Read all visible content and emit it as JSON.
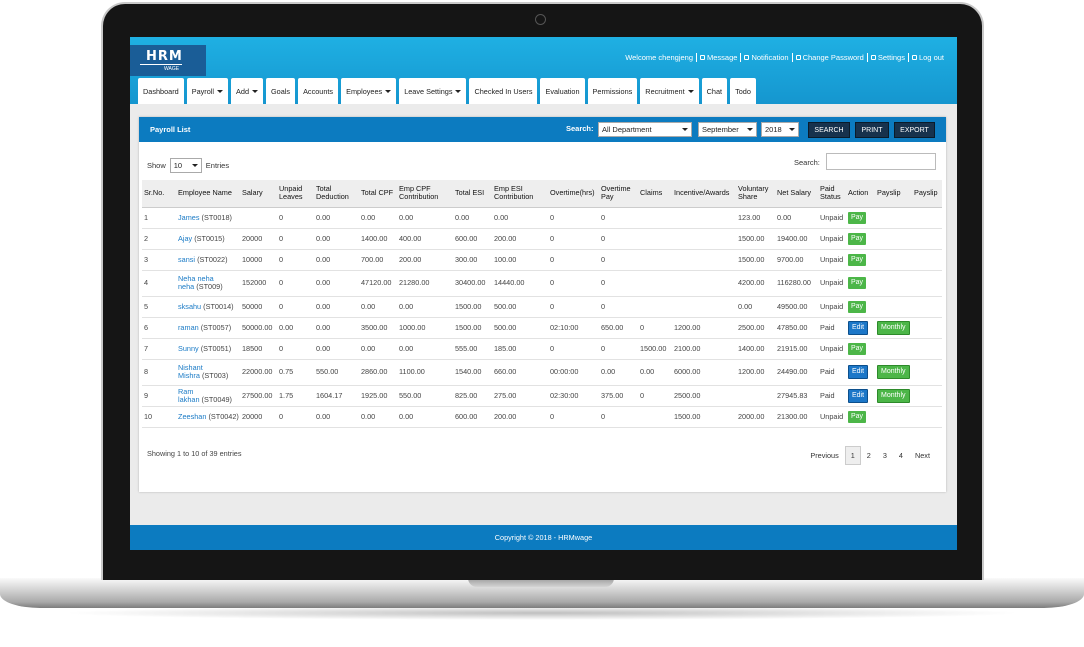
{
  "header": {
    "logo": "HRM",
    "logo_sub": "WAGE",
    "welcome": "Welcome chengjeng",
    "links": [
      "Message",
      "Notification",
      "Change Password",
      "Settings",
      "Log out"
    ]
  },
  "nav": [
    {
      "label": "Dashboard"
    },
    {
      "label": "Payroll",
      "dropdown": true
    },
    {
      "label": "Add",
      "dropdown": true
    },
    {
      "label": "Goals"
    },
    {
      "label": "Accounts"
    },
    {
      "label": "Employees",
      "dropdown": true
    },
    {
      "label": "Leave Settings",
      "dropdown": true
    },
    {
      "label": "Checked In Users"
    },
    {
      "label": "Evaluation"
    },
    {
      "label": "Permissions"
    },
    {
      "label": "Recruitment",
      "dropdown": true
    },
    {
      "label": "Chat"
    },
    {
      "label": "Todo"
    }
  ],
  "panel": {
    "title": "Payroll List",
    "search_label": "Search:",
    "department": "All Department",
    "month": "September",
    "year": "2018",
    "buttons": [
      "SEARCH",
      "PRINT",
      "EXPORT"
    ]
  },
  "table_controls": {
    "show": "Show",
    "page_size": "10",
    "entries": "Entries",
    "search": "Search:"
  },
  "table": {
    "columns": [
      "Sr.No.",
      "Employee Name",
      "Salary",
      "Unpaid Leaves",
      "Total Deduction",
      "Total CPF",
      "Emp CPF Contribution",
      "Total ESI",
      "Emp ESI Contribution",
      "Overtime(hrs)",
      "Overtime Pay",
      "Claims",
      "Incentive/Awards",
      "Voluntary Share",
      "Net Salary",
      "Paid Status",
      "Action",
      "Payslip",
      "Payslip"
    ],
    "rows": [
      {
        "no": "1",
        "name": "James",
        "id": "(ST0018)",
        "cells": [
          null,
          "0",
          "0.00",
          "0.00",
          "0.00",
          "0.00",
          "0.00",
          "0",
          "0",
          null,
          null,
          "123.00",
          "0.00",
          "Unpaid"
        ],
        "action": "Pay"
      },
      {
        "no": "2",
        "name": "Ajay",
        "id": "(ST0015)",
        "cells": [
          "20000",
          "0",
          "0.00",
          "1400.00",
          "400.00",
          "600.00",
          "200.00",
          "0",
          "0",
          null,
          null,
          "1500.00",
          "19400.00",
          "Unpaid"
        ],
        "action": "Pay"
      },
      {
        "no": "3",
        "name": "sansi",
        "id": "(ST0022)",
        "cells": [
          "10000",
          "0",
          "0.00",
          "700.00",
          "200.00",
          "300.00",
          "100.00",
          "0",
          "0",
          null,
          null,
          "1500.00",
          "9700.00",
          "Unpaid"
        ],
        "action": "Pay"
      },
      {
        "no": "4",
        "name": "Neha neha neha",
        "id": "(ST009)",
        "cells": [
          "152000",
          "0",
          "0.00",
          "47120.00",
          "21280.00",
          "30400.00",
          "14440.00",
          "0",
          "0",
          null,
          null,
          "4200.00",
          "116280.00",
          "Unpaid"
        ],
        "action": "Pay"
      },
      {
        "no": "5",
        "name": "sksahu",
        "id": "(ST0014)",
        "cells": [
          "50000",
          "0",
          "0.00",
          "0.00",
          "0.00",
          "1500.00",
          "500.00",
          "0",
          "0",
          null,
          null,
          "0.00",
          "49500.00",
          "Unpaid"
        ],
        "action": "Pay"
      },
      {
        "no": "6",
        "name": "raman",
        "id": "(ST0057)",
        "cells": [
          "50000.00",
          "0.00",
          "0.00",
          "3500.00",
          "1000.00",
          "1500.00",
          "500.00",
          "02:10:00",
          "650.00",
          "0",
          "1200.00",
          "2500.00",
          "47850.00",
          "Paid"
        ],
        "action": "Edit",
        "payslip": "Monthly"
      },
      {
        "no": "7",
        "name": "Sunny",
        "id": "(ST0051)",
        "cells": [
          "18500",
          "0",
          "0.00",
          "0.00",
          "0.00",
          "555.00",
          "185.00",
          "0",
          "0",
          "1500.00",
          "2100.00",
          "1400.00",
          "21915.00",
          "Unpaid"
        ],
        "action": "Pay"
      },
      {
        "no": "8",
        "name": "Nishant Mishra",
        "id": "(ST003)",
        "cells": [
          "22000.00",
          "0.75",
          "550.00",
          "2860.00",
          "1100.00",
          "1540.00",
          "660.00",
          "00:00:00",
          "0.00",
          "0.00",
          "6000.00",
          "1200.00",
          "24490.00",
          "Paid"
        ],
        "action": "Edit",
        "payslip": "Monthly"
      },
      {
        "no": "9",
        "name": "Ram lakhan",
        "id": "(ST0049)",
        "cells": [
          "27500.00",
          "1.75",
          "1604.17",
          "1925.00",
          "550.00",
          "825.00",
          "275.00",
          "02:30:00",
          "375.00",
          "0",
          "2500.00",
          null,
          "27945.83",
          "Paid"
        ],
        "action": "Edit",
        "payslip": "Monthly"
      },
      {
        "no": "10",
        "name": "Zeeshan",
        "id": "(ST0042)",
        "cells": [
          "20000",
          "0",
          "0.00",
          "0.00",
          "0.00",
          "600.00",
          "200.00",
          "0",
          "0",
          null,
          "1500.00",
          "2000.00",
          "21300.00",
          "Unpaid"
        ],
        "action": "Pay"
      }
    ]
  },
  "footer_info": "Showing 1 to 10 of 39 entries",
  "pagination": {
    "previous": "Previous",
    "pages": [
      "1",
      "2",
      "3",
      "4"
    ],
    "next": "Next"
  },
  "copyright": "Copyright © 2018 - HRMwage"
}
